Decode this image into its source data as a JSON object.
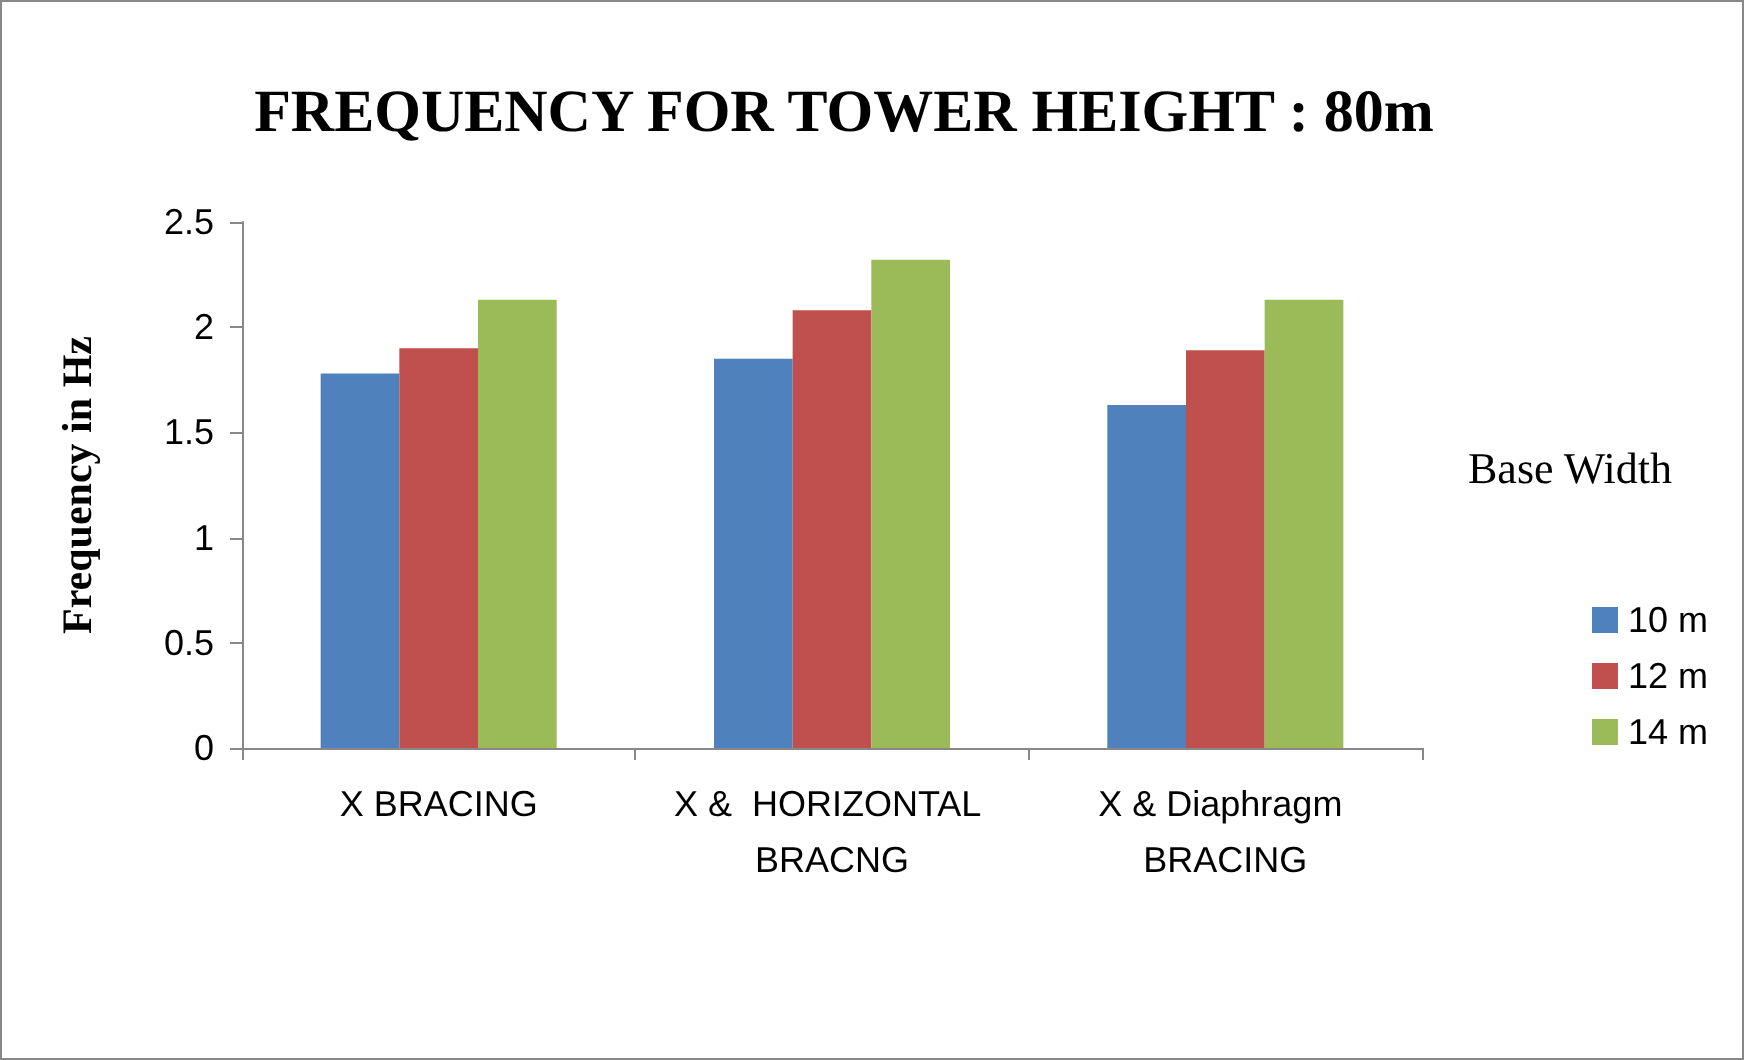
{
  "chart_data": {
    "type": "bar",
    "title": "FREQUENCY FOR TOWER HEIGHT : 80m",
    "ylabel": "Frequency in Hz",
    "legend_title": "Base Width",
    "categories": [
      "X BRACING",
      "X &  HORIZONTAL BRACNG",
      "X & Diaphragm BRACING"
    ],
    "series": [
      {
        "name": "10 m",
        "color": "#4f81bd",
        "values": [
          1.78,
          1.85,
          1.63
        ]
      },
      {
        "name": "12 m",
        "color": "#c0504d",
        "values": [
          1.9,
          2.08,
          1.89
        ]
      },
      {
        "name": "14 m",
        "color": "#9bbb59",
        "values": [
          2.13,
          2.32,
          2.13
        ]
      }
    ],
    "ylim": [
      0,
      2.5
    ],
    "yticks": [
      0,
      0.5,
      1,
      1.5,
      2,
      2.5
    ],
    "grid": false,
    "legend": "right"
  }
}
